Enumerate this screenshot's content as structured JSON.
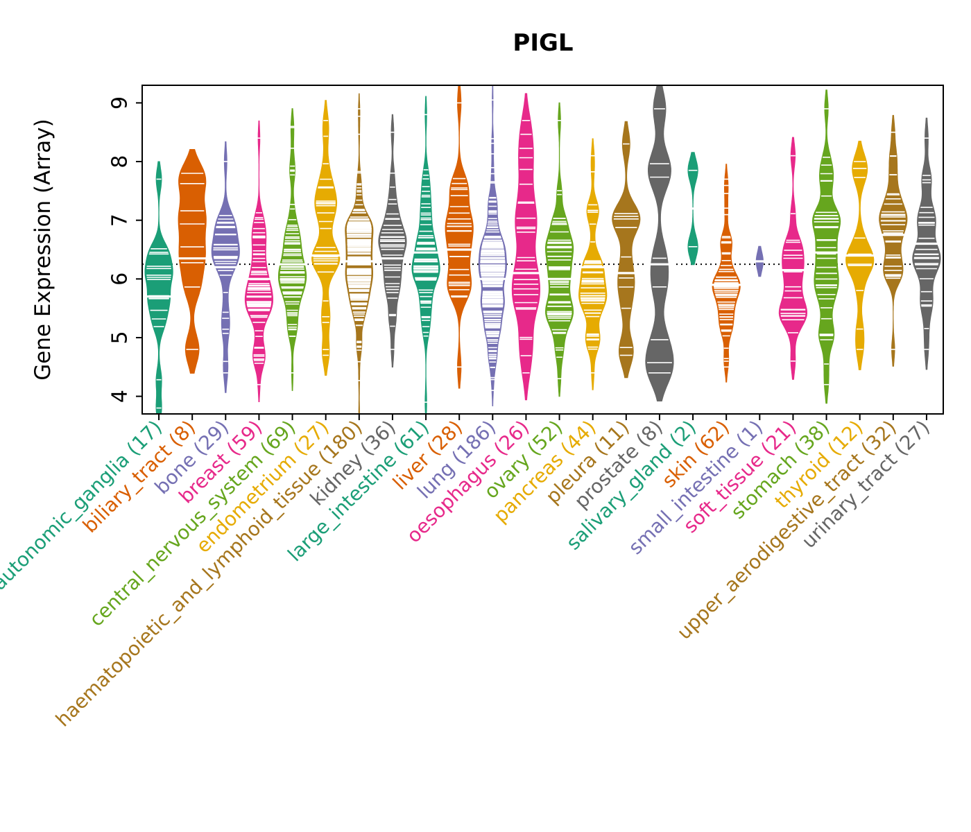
{
  "chart_data": {
    "type": "violin",
    "subtype": "beanplot",
    "title": "PIGL",
    "ylabel": "Gene Expression (Array)",
    "xlabel": "",
    "ylim": [
      3.7,
      9.3
    ],
    "yticks": [
      4,
      5,
      6,
      7,
      8,
      9
    ],
    "grid": false,
    "legend_position": null,
    "xticklabel_rotation": 45,
    "reference_line": {
      "value": 6.25,
      "style": "dotted",
      "color": "#000000"
    },
    "point_mark_color": "#ffffff",
    "categories": [
      {
        "name": "autonomic_ganglia",
        "count": 17,
        "label": "autonomic_ganglia (17)",
        "color": "#1B9E77",
        "stats": {
          "center": 5.7,
          "mean": 5.8,
          "sd": 0.6,
          "min": 3.8,
          "max": 7.7
        }
      },
      {
        "name": "biliary_tract",
        "count": 8,
        "label": "biliary_tract (8)",
        "color": "#D95F02",
        "stats": {
          "center": 6.35,
          "mean": 6.5,
          "sd": 0.7,
          "min": 4.8,
          "max": 7.8
        }
      },
      {
        "name": "bone",
        "count": 29,
        "label": "bone (29)",
        "color": "#7570B3",
        "stats": {
          "center": 6.2,
          "mean": 6.2,
          "sd": 0.75,
          "min": 4.4,
          "max": 8.0
        }
      },
      {
        "name": "breast",
        "count": 59,
        "label": "breast (59)",
        "color": "#E7298A",
        "stats": {
          "center": 6.0,
          "mean": 6.0,
          "sd": 0.75,
          "min": 4.2,
          "max": 8.4
        }
      },
      {
        "name": "central_nervous_system",
        "count": 69,
        "label": "central_nervous_system (69)",
        "color": "#66A61E",
        "stats": {
          "center": 6.25,
          "mean": 6.3,
          "sd": 0.8,
          "min": 4.4,
          "max": 8.6
        }
      },
      {
        "name": "endometrium",
        "count": 27,
        "label": "endometrium (27)",
        "color": "#E6AB02",
        "stats": {
          "center": 6.4,
          "mean": 6.5,
          "sd": 0.75,
          "min": 4.7,
          "max": 8.7
        }
      },
      {
        "name": "haematopoietic_and_lymphoid_tissue",
        "count": 180,
        "label": "haematopoietic_and_lymphoid_tissue (180)",
        "color": "#A6761D",
        "stats": {
          "center": 6.3,
          "mean": 6.3,
          "sd": 0.7,
          "min": 3.7,
          "max": 8.9
        }
      },
      {
        "name": "kidney",
        "count": 36,
        "label": "kidney (36)",
        "color": "#666666",
        "stats": {
          "center": 6.35,
          "mean": 6.4,
          "sd": 0.7,
          "min": 4.8,
          "max": 8.5
        }
      },
      {
        "name": "large_intestine",
        "count": 61,
        "label": "large_intestine (61)",
        "color": "#1B9E77",
        "stats": {
          "center": 6.45,
          "mean": 6.45,
          "sd": 0.8,
          "min": 3.9,
          "max": 8.8
        }
      },
      {
        "name": "liver",
        "count": 28,
        "label": "liver (28)",
        "color": "#D95F02",
        "stats": {
          "center": 6.5,
          "mean": 6.5,
          "sd": 0.8,
          "min": 4.5,
          "max": 9.0
        }
      },
      {
        "name": "lung",
        "count": 186,
        "label": "lung (186)",
        "color": "#7570B3",
        "stats": {
          "center": 6.0,
          "mean": 6.05,
          "sd": 0.85,
          "min": 4.1,
          "max": 9.05
        }
      },
      {
        "name": "oesophagus",
        "count": 26,
        "label": "oesophagus (26)",
        "color": "#E7298A",
        "stats": {
          "center": 6.1,
          "mean": 6.4,
          "sd": 1.0,
          "min": 4.4,
          "max": 8.7
        }
      },
      {
        "name": "ovary",
        "count": 52,
        "label": "ovary (52)",
        "color": "#66A61E",
        "stats": {
          "center": 6.0,
          "mean": 6.0,
          "sd": 0.75,
          "min": 4.3,
          "max": 8.7
        }
      },
      {
        "name": "pancreas",
        "count": 44,
        "label": "pancreas (44)",
        "color": "#E6AB02",
        "stats": {
          "center": 6.2,
          "mean": 6.2,
          "sd": 0.7,
          "min": 4.4,
          "max": 8.1
        }
      },
      {
        "name": "pleura",
        "count": 11,
        "label": "pleura (11)",
        "color": "#A6761D",
        "stats": {
          "center": 6.1,
          "mean": 6.1,
          "sd": 0.7,
          "min": 4.7,
          "max": 8.3
        }
      },
      {
        "name": "prostate",
        "count": 8,
        "label": "prostate (8)",
        "color": "#666666",
        "stats": {
          "center": 6.25,
          "mean": 6.3,
          "sd": 1.1,
          "min": 4.4,
          "max": 8.9
        }
      },
      {
        "name": "salivary_gland",
        "count": 2,
        "label": "salivary_gland (2)",
        "color": "#1B9E77",
        "stats": {
          "center": 7.2,
          "mean": 7.2,
          "sd": 0.4,
          "min": 6.55,
          "max": 7.85
        }
      },
      {
        "name": "skin",
        "count": 62,
        "label": "skin (62)",
        "color": "#D95F02",
        "stats": {
          "center": 5.9,
          "mean": 5.9,
          "sd": 0.6,
          "min": 4.5,
          "max": 7.7
        }
      },
      {
        "name": "small_intestine",
        "count": 1,
        "label": "small_intestine (1)",
        "color": "#7570B3",
        "stats": {
          "center": 6.3,
          "mean": 6.3,
          "sd": 0.15,
          "min": 6.3,
          "max": 6.3
        }
      },
      {
        "name": "soft_tissue",
        "count": 21,
        "label": "soft_tissue (21)",
        "color": "#E7298A",
        "stats": {
          "center": 6.15,
          "mean": 6.1,
          "sd": 0.65,
          "min": 4.6,
          "max": 8.1
        }
      },
      {
        "name": "stomach",
        "count": 38,
        "label": "stomach (38)",
        "color": "#66A61E",
        "stats": {
          "center": 6.45,
          "mean": 6.45,
          "sd": 0.75,
          "min": 4.2,
          "max": 8.9
        }
      },
      {
        "name": "thyroid",
        "count": 12,
        "label": "thyroid (12)",
        "color": "#E6AB02",
        "stats": {
          "center": 6.4,
          "mean": 6.4,
          "sd": 0.65,
          "min": 4.8,
          "max": 8.0
        }
      },
      {
        "name": "upper_aerodigestive_tract",
        "count": 32,
        "label": "upper_aerodigestive_tract (32)",
        "color": "#A6761D",
        "stats": {
          "center": 6.75,
          "mean": 6.7,
          "sd": 0.65,
          "min": 4.8,
          "max": 8.5
        }
      },
      {
        "name": "urinary_tract",
        "count": 27,
        "label": "urinary_tract (27)",
        "color": "#666666",
        "stats": {
          "center": 6.6,
          "mean": 6.6,
          "sd": 0.75,
          "min": 4.8,
          "max": 8.4
        }
      }
    ]
  }
}
